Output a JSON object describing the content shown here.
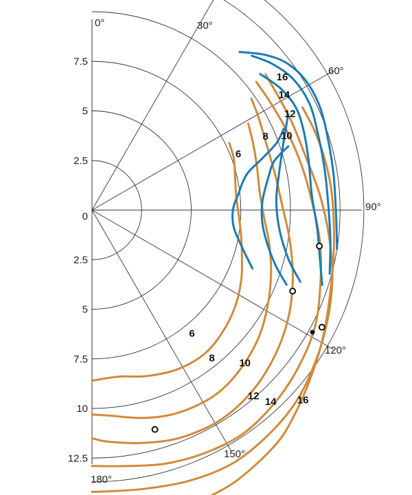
{
  "chart_data": {
    "type": "polar-line",
    "angle_unit": "degrees",
    "angle_ticks": [
      {
        "angle": 0,
        "label": "0°"
      },
      {
        "angle": 30,
        "label": "30°"
      },
      {
        "angle": 60,
        "label": "60°"
      },
      {
        "angle": 90,
        "label": "90°"
      },
      {
        "angle": 120,
        "label": "120°"
      },
      {
        "angle": 150,
        "label": "150°"
      },
      {
        "angle": 180,
        "label": "180°"
      }
    ],
    "radial_ticks_upper": [
      "7.5",
      "5",
      "2.5",
      "0"
    ],
    "radial_ticks_lower": [
      "2.5",
      "5",
      "7.5",
      "10",
      "12.5"
    ],
    "radial_tick_values_upper": [
      7.5,
      5,
      2.5,
      0
    ],
    "radial_tick_values_lower": [
      2.5,
      5,
      7.5,
      10,
      12.5
    ],
    "rlim": [
      0,
      13.7
    ],
    "rings": [
      2.5,
      5,
      7.5,
      10,
      12.5,
      13.7
    ],
    "colors": {
      "blue": "#1a7ab5",
      "orange": "#d08a3a",
      "grid": "#333333"
    },
    "blue_curves": [
      {
        "label": "6",
        "label_pos": [
          7.9,
          69
        ],
        "points": [
          [
            10.5,
            67
          ],
          [
            9.9,
            70
          ],
          [
            9.0,
            73
          ],
          [
            8.0,
            77
          ],
          [
            7.4,
            84
          ],
          [
            7.1,
            90
          ],
          [
            7.2,
            97
          ],
          [
            7.8,
            104
          ],
          [
            8.6,
            110
          ]
        ]
      },
      {
        "label": "8",
        "label_pos": [
          9.5,
          67
        ],
        "points": [
          [
            10.4,
            72
          ],
          [
            9.5,
            75
          ],
          [
            9.0,
            80
          ],
          [
            8.6,
            87
          ],
          [
            8.6,
            94
          ],
          [
            9.0,
            101
          ],
          [
            9.7,
            107
          ],
          [
            10.5,
            111
          ]
        ]
      },
      {
        "label": "10",
        "label_pos": [
          10.5,
          69
        ],
        "points": [
          [
            11.0,
            64
          ],
          [
            10.5,
            68
          ],
          [
            10.1,
            72
          ],
          [
            9.6,
            79
          ],
          [
            9.3,
            87
          ],
          [
            9.5,
            96
          ],
          [
            10.2,
            104
          ],
          [
            11.1,
            109
          ]
        ]
      },
      {
        "label": "12",
        "label_pos": [
          11.1,
          64
        ],
        "points": [
          [
            10.9,
            51
          ],
          [
            11.3,
            57
          ],
          [
            11.5,
            63
          ],
          [
            11.4,
            69
          ],
          [
            11.2,
            77
          ],
          [
            11.1,
            86
          ],
          [
            11.4,
            95
          ],
          [
            11.8,
            103
          ],
          [
            12.2,
            108
          ]
        ]
      },
      {
        "label": "14",
        "label_pos": [
          11.3,
          59
        ],
        "points": [
          [
            11.2,
            46
          ],
          [
            11.7,
            51
          ],
          [
            12.1,
            57
          ],
          [
            12.2,
            64
          ],
          [
            12.0,
            72
          ],
          [
            11.9,
            80
          ],
          [
            11.9,
            88
          ],
          [
            12.1,
            97
          ],
          [
            12.4,
            105
          ]
        ]
      },
      {
        "label": "16",
        "label_pos": [
          11.7,
          55
        ],
        "points": [
          [
            10.9,
            43
          ],
          [
            11.7,
            48
          ],
          [
            12.3,
            53
          ],
          [
            12.6,
            59
          ],
          [
            12.6,
            66
          ],
          [
            12.4,
            74
          ],
          [
            12.3,
            82
          ],
          [
            12.3,
            91
          ],
          [
            12.5,
            99
          ]
        ]
      }
    ],
    "orange_curves": [
      {
        "label": "6",
        "label_pos": [
          8.0,
          141
        ],
        "points": [
          [
            7.7,
            64
          ],
          [
            7.6,
            70
          ],
          [
            7.4,
            77
          ],
          [
            7.3,
            84
          ],
          [
            7.4,
            92
          ],
          [
            7.6,
            99
          ],
          [
            7.9,
            107
          ],
          [
            8.3,
            115
          ],
          [
            8.7,
            124
          ],
          [
            9.0,
            133
          ],
          [
            9.2,
            142
          ],
          [
            9.1,
            152
          ],
          [
            8.8,
            162
          ],
          [
            8.5,
            171
          ],
          [
            8.6,
            180
          ]
        ]
      },
      {
        "label": "8",
        "label_pos": [
          9.6,
          141
        ],
        "points": [
          [
            9.0,
            61
          ],
          [
            8.8,
            67
          ],
          [
            8.6,
            75
          ],
          [
            8.5,
            84
          ],
          [
            8.7,
            93
          ],
          [
            9.1,
            101
          ],
          [
            9.6,
            110
          ],
          [
            10.1,
            119
          ],
          [
            10.6,
            128
          ],
          [
            11.0,
            138
          ],
          [
            11.2,
            147
          ],
          [
            11.1,
            157
          ],
          [
            10.8,
            166
          ],
          [
            10.4,
            175
          ],
          [
            10.3,
            180
          ]
        ]
      },
      {
        "label": "10",
        "label_pos": [
          10.9,
          135
        ],
        "points": [
          [
            9.8,
            55
          ],
          [
            9.6,
            61
          ],
          [
            9.4,
            69
          ],
          [
            9.4,
            79
          ],
          [
            9.6,
            89
          ],
          [
            10.1,
            99
          ],
          [
            10.7,
            109
          ],
          [
            11.3,
            119
          ],
          [
            11.8,
            129
          ],
          [
            12.2,
            139
          ],
          [
            12.4,
            149
          ],
          [
            12.3,
            159
          ],
          [
            12.0,
            168
          ],
          [
            11.7,
            176
          ],
          [
            11.5,
            180
          ]
        ]
      },
      {
        "label": "12",
        "label_pos": [
          12.4,
          139
        ],
        "points": [
          [
            10.5,
            52
          ],
          [
            10.5,
            59
          ],
          [
            10.6,
            68
          ],
          [
            10.8,
            78
          ],
          [
            11.1,
            88
          ],
          [
            11.6,
            98
          ],
          [
            12.1,
            108
          ],
          [
            12.7,
            118
          ],
          [
            13.1,
            128
          ],
          [
            13.4,
            137
          ],
          [
            13.6,
            146
          ],
          [
            13.5,
            155
          ],
          [
            13.3,
            164
          ],
          [
            13.0,
            173
          ],
          [
            12.9,
            180
          ]
        ]
      },
      {
        "label": "14",
        "label_pos": [
          13.2,
          137
        ],
        "points": [
          [
            11.1,
            52
          ],
          [
            11.0,
            58
          ],
          [
            11.0,
            66
          ],
          [
            11.1,
            76
          ],
          [
            11.5,
            86
          ],
          [
            12.0,
            96
          ],
          [
            12.6,
            106
          ],
          [
            13.1,
            115
          ],
          [
            13.6,
            124
          ],
          [
            14.1,
            133
          ],
          [
            14.4,
            142
          ],
          [
            14.6,
            151
          ],
          [
            14.5,
            160
          ],
          [
            14.3,
            169
          ],
          [
            14.2,
            177
          ],
          [
            14.2,
            180
          ]
        ]
      },
      {
        "label": "16",
        "label_pos": [
          14.3,
          132
        ],
        "points": [
          [
            11.8,
            64
          ],
          [
            11.9,
            70
          ],
          [
            12.0,
            77
          ],
          [
            12.1,
            85
          ],
          [
            12.2,
            93
          ],
          [
            12.4,
            101
          ],
          [
            12.7,
            109
          ],
          [
            13.1,
            116
          ],
          [
            13.5,
            122
          ],
          [
            14.0,
            129
          ],
          [
            14.4,
            134
          ],
          [
            14.9,
            140
          ],
          [
            15.2,
            146
          ],
          [
            15.5,
            153
          ],
          [
            15.6,
            160
          ],
          [
            15.5,
            168
          ],
          [
            15.4,
            176
          ],
          [
            15.4,
            180
          ]
        ]
      }
    ],
    "open_markers": [
      [
        11.6,
        99
      ],
      [
        10.9,
        112
      ],
      [
        13.0,
        117
      ],
      [
        11.5,
        164
      ]
    ],
    "filled_markers": [
      [
        12.7,
        119
      ]
    ]
  }
}
